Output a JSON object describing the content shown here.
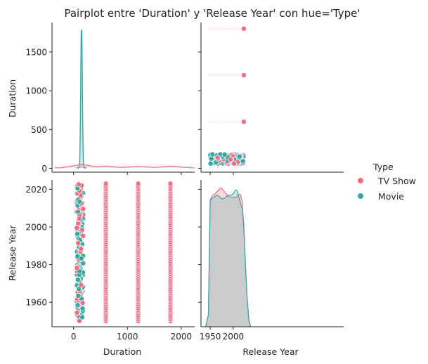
{
  "chart_data": {
    "type": "scatter",
    "title": "Pairplot entre 'Duration' y 'Release Year' con hue='Type'",
    "variables": [
      "Duration",
      "Release Year"
    ],
    "axis_labels": {
      "x_left": "Duration",
      "x_right": "Release Year",
      "y_top": "Duration",
      "y_bottom": "Release Year"
    },
    "ticks": {
      "duration": [
        "0",
        "500",
        "1000",
        "1500"
      ],
      "duration_x": [
        "0",
        "1000",
        "2000"
      ],
      "year": [
        "1960",
        "1980",
        "2000",
        "2020"
      ],
      "year_x": [
        "1950",
        "2000"
      ]
    },
    "ranges": {
      "duration_y": [
        -50,
        1880
      ],
      "duration_x": [
        -400,
        2250
      ],
      "year_y": [
        1947,
        2025
      ],
      "year_x": [
        1930,
        2240
      ]
    },
    "legend": {
      "title": "Type",
      "placement": "right",
      "entries": [
        {
          "label": "TV Show",
          "color": "#f07083"
        },
        {
          "label": "Movie",
          "color": "#36a8a0"
        }
      ]
    },
    "series": [
      {
        "name": "TV Show",
        "color": "#f07083",
        "duration_values": [
          60,
          120,
          600,
          1200,
          1800
        ],
        "year_range": [
          1950,
          2023
        ]
      },
      {
        "name": "Movie",
        "color": "#36a8a0",
        "duration_range": [
          60,
          180
        ],
        "year_range": [
          1950,
          2023
        ]
      }
    ],
    "kde": {
      "duration": {
        "Movie": {
          "peak_x": 150,
          "peak_y": 1790
        },
        "TV Show": {
          "peak_x": 150,
          "peak_y": 35
        }
      },
      "year": {
        "TV Show": [
          [
            1940,
            0
          ],
          [
            1946,
            20
          ],
          [
            1950,
            205
          ],
          [
            1955,
            212
          ],
          [
            1960,
            214
          ],
          [
            1965,
            218
          ],
          [
            1968,
            220
          ],
          [
            1972,
            224
          ],
          [
            1976,
            223
          ],
          [
            1980,
            218
          ],
          [
            1985,
            214
          ],
          [
            1990,
            210
          ],
          [
            1995,
            209
          ],
          [
            2000,
            209
          ],
          [
            2005,
            208
          ],
          [
            2010,
            212
          ],
          [
            2013,
            214
          ],
          [
            2016,
            213
          ],
          [
            2019,
            203
          ],
          [
            2023,
            165
          ],
          [
            2026,
            110
          ],
          [
            2030,
            50
          ],
          [
            2034,
            12
          ],
          [
            2038,
            0
          ]
        ],
        "Movie": [
          [
            1940,
            0
          ],
          [
            1946,
            18
          ],
          [
            1950,
            203
          ],
          [
            1955,
            208
          ],
          [
            1960,
            210
          ],
          [
            1965,
            212
          ],
          [
            1968,
            211
          ],
          [
            1972,
            208
          ],
          [
            1976,
            206
          ],
          [
            1980,
            207
          ],
          [
            1985,
            210
          ],
          [
            1990,
            212
          ],
          [
            1995,
            212
          ],
          [
            2000,
            214
          ],
          [
            2004,
            220
          ],
          [
            2008,
            220
          ],
          [
            2012,
            210
          ],
          [
            2016,
            198
          ],
          [
            2020,
            190
          ],
          [
            2023,
            160
          ],
          [
            2026,
            106
          ],
          [
            2030,
            48
          ],
          [
            2034,
            10
          ],
          [
            2038,
            0
          ]
        ]
      }
    }
  }
}
